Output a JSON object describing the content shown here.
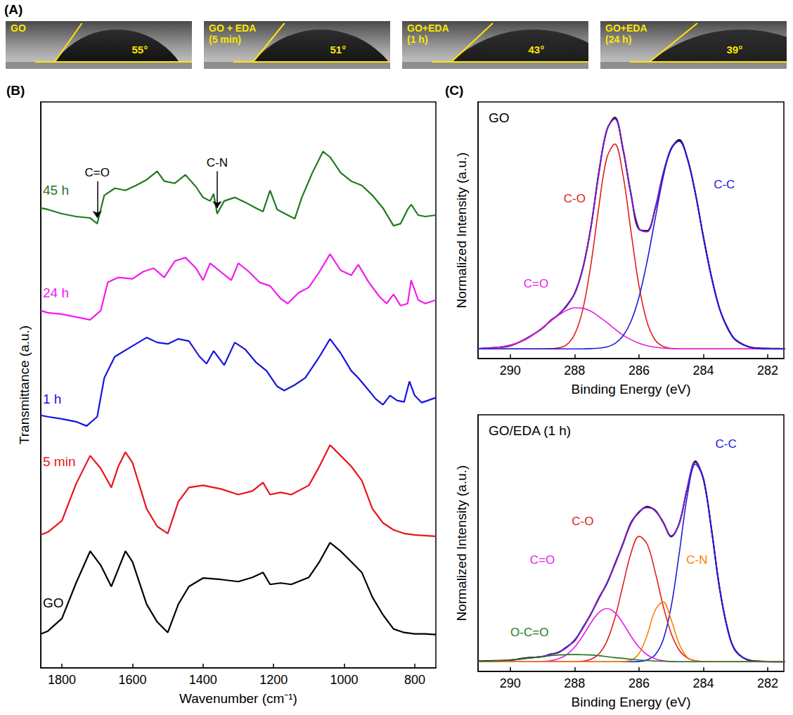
{
  "panel_labels": [
    "(A)",
    "(B)",
    "(C)"
  ],
  "contact_angle": [
    {
      "label": "GO",
      "angle": 55,
      "angle_label": "55°"
    },
    {
      "label": "GO + EDA (5 min)",
      "angle": 51,
      "angle_label": "51°"
    },
    {
      "label": "GO+EDA (1 h)",
      "angle": 43,
      "angle_label": "43°"
    },
    {
      "label": "GO+EDA (24 h)",
      "angle": 39,
      "angle_label": "39°"
    }
  ],
  "chart_data": [
    {
      "type": "line",
      "x_label": "Wavenumber (cm⁻¹)",
      "y_label": "Transmittance (a.u.)",
      "xlim": [
        1860,
        740
      ],
      "xticks": [
        1800,
        1600,
        1400,
        1200,
        1000,
        800
      ],
      "ylim": [
        0,
        800
      ],
      "tick_labels": "x",
      "grid": false,
      "series": [
        {
          "name": "GO",
          "color": "#000000",
          "label_at": [
            1855,
            92
          ],
          "x": [
            1860,
            1840,
            1800,
            1760,
            1720,
            1690,
            1660,
            1640,
            1620,
            1600,
            1560,
            1530,
            1500,
            1470,
            1440,
            1400,
            1350,
            1300,
            1260,
            1230,
            1210,
            1180,
            1150,
            1100,
            1070,
            1040,
            1010,
            980,
            950,
            920,
            890,
            860,
            830,
            800,
            770,
            740
          ],
          "values": [
            48,
            52,
            70,
            120,
            165,
            145,
            115,
            140,
            165,
            150,
            90,
            65,
            50,
            90,
            115,
            127,
            125,
            122,
            128,
            135,
            118,
            120,
            118,
            128,
            150,
            177,
            165,
            150,
            135,
            100,
            75,
            55,
            50,
            48,
            48,
            47
          ]
        },
        {
          "name": "5 min",
          "color": "#e8141e",
          "label_at": [
            1855,
            292
          ],
          "x": [
            1860,
            1840,
            1800,
            1760,
            1720,
            1690,
            1660,
            1640,
            1620,
            1600,
            1560,
            1530,
            1500,
            1470,
            1440,
            1400,
            1350,
            1300,
            1260,
            1230,
            1210,
            1180,
            1150,
            1100,
            1070,
            1040,
            1010,
            980,
            950,
            920,
            890,
            860,
            830,
            800,
            770,
            740
          ],
          "values": [
            188,
            192,
            208,
            260,
            300,
            282,
            255,
            285,
            305,
            290,
            225,
            200,
            190,
            235,
            255,
            258,
            253,
            245,
            250,
            262,
            245,
            248,
            245,
            258,
            285,
            315,
            300,
            285,
            265,
            225,
            205,
            195,
            190,
            188,
            187,
            186
          ]
        },
        {
          "name": "1 h",
          "color": "#1515e0",
          "label_at": [
            1855,
            380
          ],
          "x": [
            1860,
            1840,
            1800,
            1760,
            1730,
            1700,
            1680,
            1650,
            1600,
            1560,
            1530,
            1500,
            1470,
            1440,
            1410,
            1390,
            1370,
            1340,
            1310,
            1280,
            1250,
            1220,
            1190,
            1170,
            1140,
            1110,
            1070,
            1040,
            1010,
            980,
            960,
            940,
            910,
            890,
            870,
            850,
            830,
            815,
            800,
            780,
            740
          ],
          "values": [
            357,
            355,
            352,
            348,
            342,
            355,
            410,
            440,
            455,
            467,
            460,
            458,
            465,
            462,
            440,
            430,
            448,
            428,
            460,
            450,
            432,
            420,
            398,
            392,
            400,
            410,
            440,
            465,
            445,
            420,
            410,
            398,
            380,
            372,
            385,
            378,
            376,
            405,
            385,
            375,
            382
          ]
        },
        {
          "name": "24 h",
          "color": "#f01cf0",
          "label_at": [
            1855,
            530
          ],
          "x": [
            1860,
            1840,
            1800,
            1760,
            1720,
            1690,
            1670,
            1640,
            1600,
            1570,
            1540,
            1510,
            1480,
            1450,
            1420,
            1400,
            1380,
            1350,
            1320,
            1300,
            1270,
            1240,
            1210,
            1180,
            1160,
            1130,
            1100,
            1070,
            1040,
            1010,
            980,
            960,
            930,
            900,
            880,
            860,
            840,
            820,
            810,
            790,
            770,
            740
          ],
          "values": [
            505,
            502,
            500,
            496,
            492,
            505,
            545,
            552,
            550,
            560,
            565,
            552,
            575,
            580,
            565,
            548,
            572,
            560,
            548,
            572,
            560,
            545,
            540,
            522,
            515,
            530,
            538,
            560,
            585,
            562,
            555,
            570,
            545,
            525,
            515,
            528,
            512,
            515,
            548,
            520,
            515,
            520
          ]
        },
        {
          "name": "45 h",
          "color": "#1f7a1f",
          "label_at": [
            1855,
            675
          ],
          "x": [
            1860,
            1840,
            1800,
            1760,
            1720,
            1700,
            1680,
            1650,
            1620,
            1590,
            1560,
            1530,
            1510,
            1480,
            1450,
            1420,
            1400,
            1380,
            1370,
            1360,
            1340,
            1310,
            1280,
            1250,
            1230,
            1210,
            1190,
            1160,
            1140,
            1120,
            1090,
            1060,
            1040,
            1010,
            980,
            950,
            920,
            890,
            860,
            840,
            820,
            810,
            790,
            770,
            740
          ],
          "values": [
            650,
            648,
            642,
            638,
            636,
            628,
            668,
            678,
            675,
            682,
            690,
            702,
            688,
            685,
            697,
            680,
            665,
            660,
            670,
            642,
            660,
            665,
            658,
            650,
            645,
            675,
            648,
            640,
            635,
            665,
            700,
            730,
            722,
            700,
            688,
            682,
            668,
            650,
            625,
            628,
            648,
            655,
            640,
            638,
            640
          ]
        }
      ],
      "annotations": [
        {
          "text": "C=O",
          "x": 1700,
          "series": "45 h"
        },
        {
          "text": "C-N",
          "x": 1360,
          "series": "45 h"
        }
      ]
    },
    {
      "type": "line",
      "title": "GO",
      "x_label": "Binding Energy (eV)",
      "y_label": "Normalized Intensity (a.u.)",
      "xlim": [
        291,
        281.5
      ],
      "xticks": [
        290,
        288,
        286,
        284,
        282
      ],
      "ylim": [
        -0.04,
        1.02
      ],
      "tick_labels": "x",
      "grid": false,
      "x": [
        291,
        290.5,
        290,
        289.5,
        289,
        288.75,
        288.5,
        288.25,
        288,
        287.75,
        287.5,
        287.25,
        287,
        286.75,
        286.5,
        286.25,
        286,
        285.75,
        285.5,
        285.25,
        285,
        284.75,
        284.5,
        284.25,
        284,
        283.75,
        283.5,
        283.25,
        283,
        282.5,
        282,
        281.5,
        281
      ],
      "series": [
        {
          "color": "#000000",
          "values": [
            0.001,
            0.005,
            0.013,
            0.043,
            0.085,
            0.117,
            0.141,
            0.179,
            0.228,
            0.331,
            0.497,
            0.727,
            0.903,
            0.956,
            0.826,
            0.641,
            0.494,
            0.488,
            0.577,
            0.724,
            0.826,
            0.864,
            0.786,
            0.645,
            0.461,
            0.299,
            0.166,
            0.088,
            0.036,
            0.006,
            0.002,
            0.001,
            0
          ]
        },
        {
          "color": "#7f1fd0",
          "values": [
            0.001,
            0.004,
            0.015,
            0.041,
            0.087,
            0.115,
            0.143,
            0.176,
            0.23,
            0.328,
            0.5,
            0.722,
            0.906,
            0.95,
            0.83,
            0.637,
            0.497,
            0.484,
            0.58,
            0.721,
            0.83,
            0.858,
            0.789,
            0.642,
            0.464,
            0.297,
            0.168,
            0.085,
            0.038,
            0.005,
            0,
            0,
            0
          ]
        },
        {
          "name": "C-O",
          "color": "#e0201b",
          "label_at": [
            288.0,
            0.62
          ],
          "values": [
            0,
            0,
            0,
            0,
            0,
            0.001,
            0.004,
            0.017,
            0.06,
            0.16,
            0.343,
            0.585,
            0.789,
            0.846,
            0.72,
            0.486,
            0.26,
            0.111,
            0.037,
            0.01,
            0.002,
            0,
            0,
            0,
            0,
            0,
            0,
            0,
            0,
            0,
            0,
            0,
            0
          ]
        },
        {
          "name": "C=O",
          "color": "#e51ee5",
          "label_at": [
            289.2,
            0.27
          ],
          "values": [
            0.001,
            0.004,
            0.015,
            0.041,
            0.087,
            0.114,
            0.139,
            0.159,
            0.17,
            0.168,
            0.156,
            0.134,
            0.109,
            0.082,
            0.057,
            0.038,
            0.023,
            0.013,
            0.007,
            0.003,
            0.001,
            0,
            0,
            0,
            0,
            0,
            0,
            0,
            0,
            0,
            0,
            0,
            0
          ]
        },
        {
          "name": "C-C",
          "color": "#1c1cdc",
          "label_at": [
            283.35,
            0.68
          ],
          "values": [
            0,
            0,
            0,
            0,
            0,
            0,
            0,
            0,
            0,
            0,
            0.001,
            0.003,
            0.008,
            0.022,
            0.053,
            0.113,
            0.214,
            0.36,
            0.536,
            0.708,
            0.827,
            0.858,
            0.789,
            0.642,
            0.464,
            0.297,
            0.168,
            0.085,
            0.038,
            0.005,
            0,
            0,
            0
          ]
        }
      ]
    },
    {
      "type": "line",
      "title": "GO/EDA (1 h)",
      "x_label": "Binding Energy (eV)",
      "y_label": "Normalized Intensity (a.u.)",
      "xlim": [
        291,
        281.5
      ],
      "xticks": [
        290,
        288,
        286,
        284,
        282
      ],
      "ylim": [
        -0.04,
        1.02
      ],
      "tick_labels": "x",
      "grid": false,
      "x": [
        291,
        290.5,
        290,
        289.5,
        289,
        288.75,
        288.5,
        288.25,
        288,
        287.75,
        287.5,
        287.25,
        287,
        286.75,
        286.5,
        286.25,
        286,
        285.75,
        285.5,
        285.25,
        285,
        284.75,
        284.5,
        284.25,
        284,
        283.75,
        283.5,
        283.25,
        283,
        282.5,
        282,
        281.5,
        281
      ],
      "series": [
        {
          "color": "#000000",
          "values": [
            0.002,
            0.004,
            0.006,
            0.016,
            0.021,
            0.031,
            0.038,
            0.061,
            0.087,
            0.14,
            0.195,
            0.263,
            0.322,
            0.404,
            0.486,
            0.574,
            0.617,
            0.641,
            0.624,
            0.577,
            0.517,
            0.572,
            0.716,
            0.828,
            0.754,
            0.55,
            0.305,
            0.138,
            0.044,
            0.004,
            0.001,
            0,
            0.001
          ]
        },
        {
          "color": "#7f1fd0",
          "values": [
            0.001,
            0.003,
            0.007,
            0.014,
            0.022,
            0.029,
            0.04,
            0.058,
            0.09,
            0.137,
            0.197,
            0.26,
            0.325,
            0.4,
            0.489,
            0.57,
            0.62,
            0.637,
            0.627,
            0.574,
            0.52,
            0.569,
            0.719,
            0.823,
            0.758,
            0.547,
            0.308,
            0.135,
            0.046,
            0.003,
            0,
            0,
            0
          ]
        },
        {
          "name": "C-C",
          "color": "#1c1cdc",
          "label_at": [
            283.3,
            0.9
          ],
          "values": [
            0,
            0,
            0,
            0,
            0,
            0,
            0,
            0,
            0,
            0,
            0,
            0,
            0,
            0,
            0,
            0,
            0.001,
            0.007,
            0.028,
            0.09,
            0.228,
            0.448,
            0.685,
            0.816,
            0.757,
            0.547,
            0.308,
            0.135,
            0.046,
            0.003,
            0,
            0,
            0
          ]
        },
        {
          "name": "C-O",
          "color": "#e0201b",
          "label_at": [
            287.75,
            0.58
          ],
          "values": [
            0,
            0,
            0,
            0,
            0,
            0,
            0,
            0,
            0,
            0.002,
            0.01,
            0.032,
            0.084,
            0.18,
            0.315,
            0.448,
            0.518,
            0.487,
            0.372,
            0.231,
            0.117,
            0.048,
            0.016,
            0.004,
            0.001,
            0,
            0,
            0,
            0,
            0,
            0,
            0,
            0
          ]
        },
        {
          "name": "C=O",
          "color": "#e51ee5",
          "label_at": [
            289.0,
            0.42
          ],
          "values": [
            0,
            0,
            0,
            0,
            0.001,
            0.004,
            0.012,
            0.029,
            0.06,
            0.106,
            0.159,
            0.203,
            0.22,
            0.203,
            0.159,
            0.106,
            0.06,
            0.029,
            0.012,
            0.004,
            0.001,
            0,
            0,
            0,
            0,
            0,
            0,
            0,
            0,
            0,
            0,
            0,
            0
          ]
        },
        {
          "name": "C-N",
          "color": "#ff8000",
          "label_at": [
            284.2,
            0.42
          ],
          "values": [
            0,
            0,
            0,
            0,
            0,
            0,
            0,
            0,
            0,
            0,
            0,
            0,
            0,
            0,
            0.001,
            0.006,
            0.034,
            0.109,
            0.212,
            0.247,
            0.173,
            0.073,
            0.018,
            0.003,
            0,
            0,
            0,
            0,
            0,
            0,
            0,
            0,
            0
          ]
        },
        {
          "name": "O-C=O",
          "color": "#1f7a1f",
          "label_at": [
            289.4,
            0.12
          ],
          "values": [
            0.001,
            0.003,
            0.007,
            0.014,
            0.021,
            0.025,
            0.028,
            0.029,
            0.03,
            0.029,
            0.028,
            0.025,
            0.021,
            0.017,
            0.014,
            0.01,
            0.007,
            0.005,
            0.003,
            0.002,
            0.001,
            0,
            0,
            0,
            0,
            0,
            0,
            0,
            0,
            0,
            0,
            0,
            0
          ]
        }
      ]
    }
  ]
}
